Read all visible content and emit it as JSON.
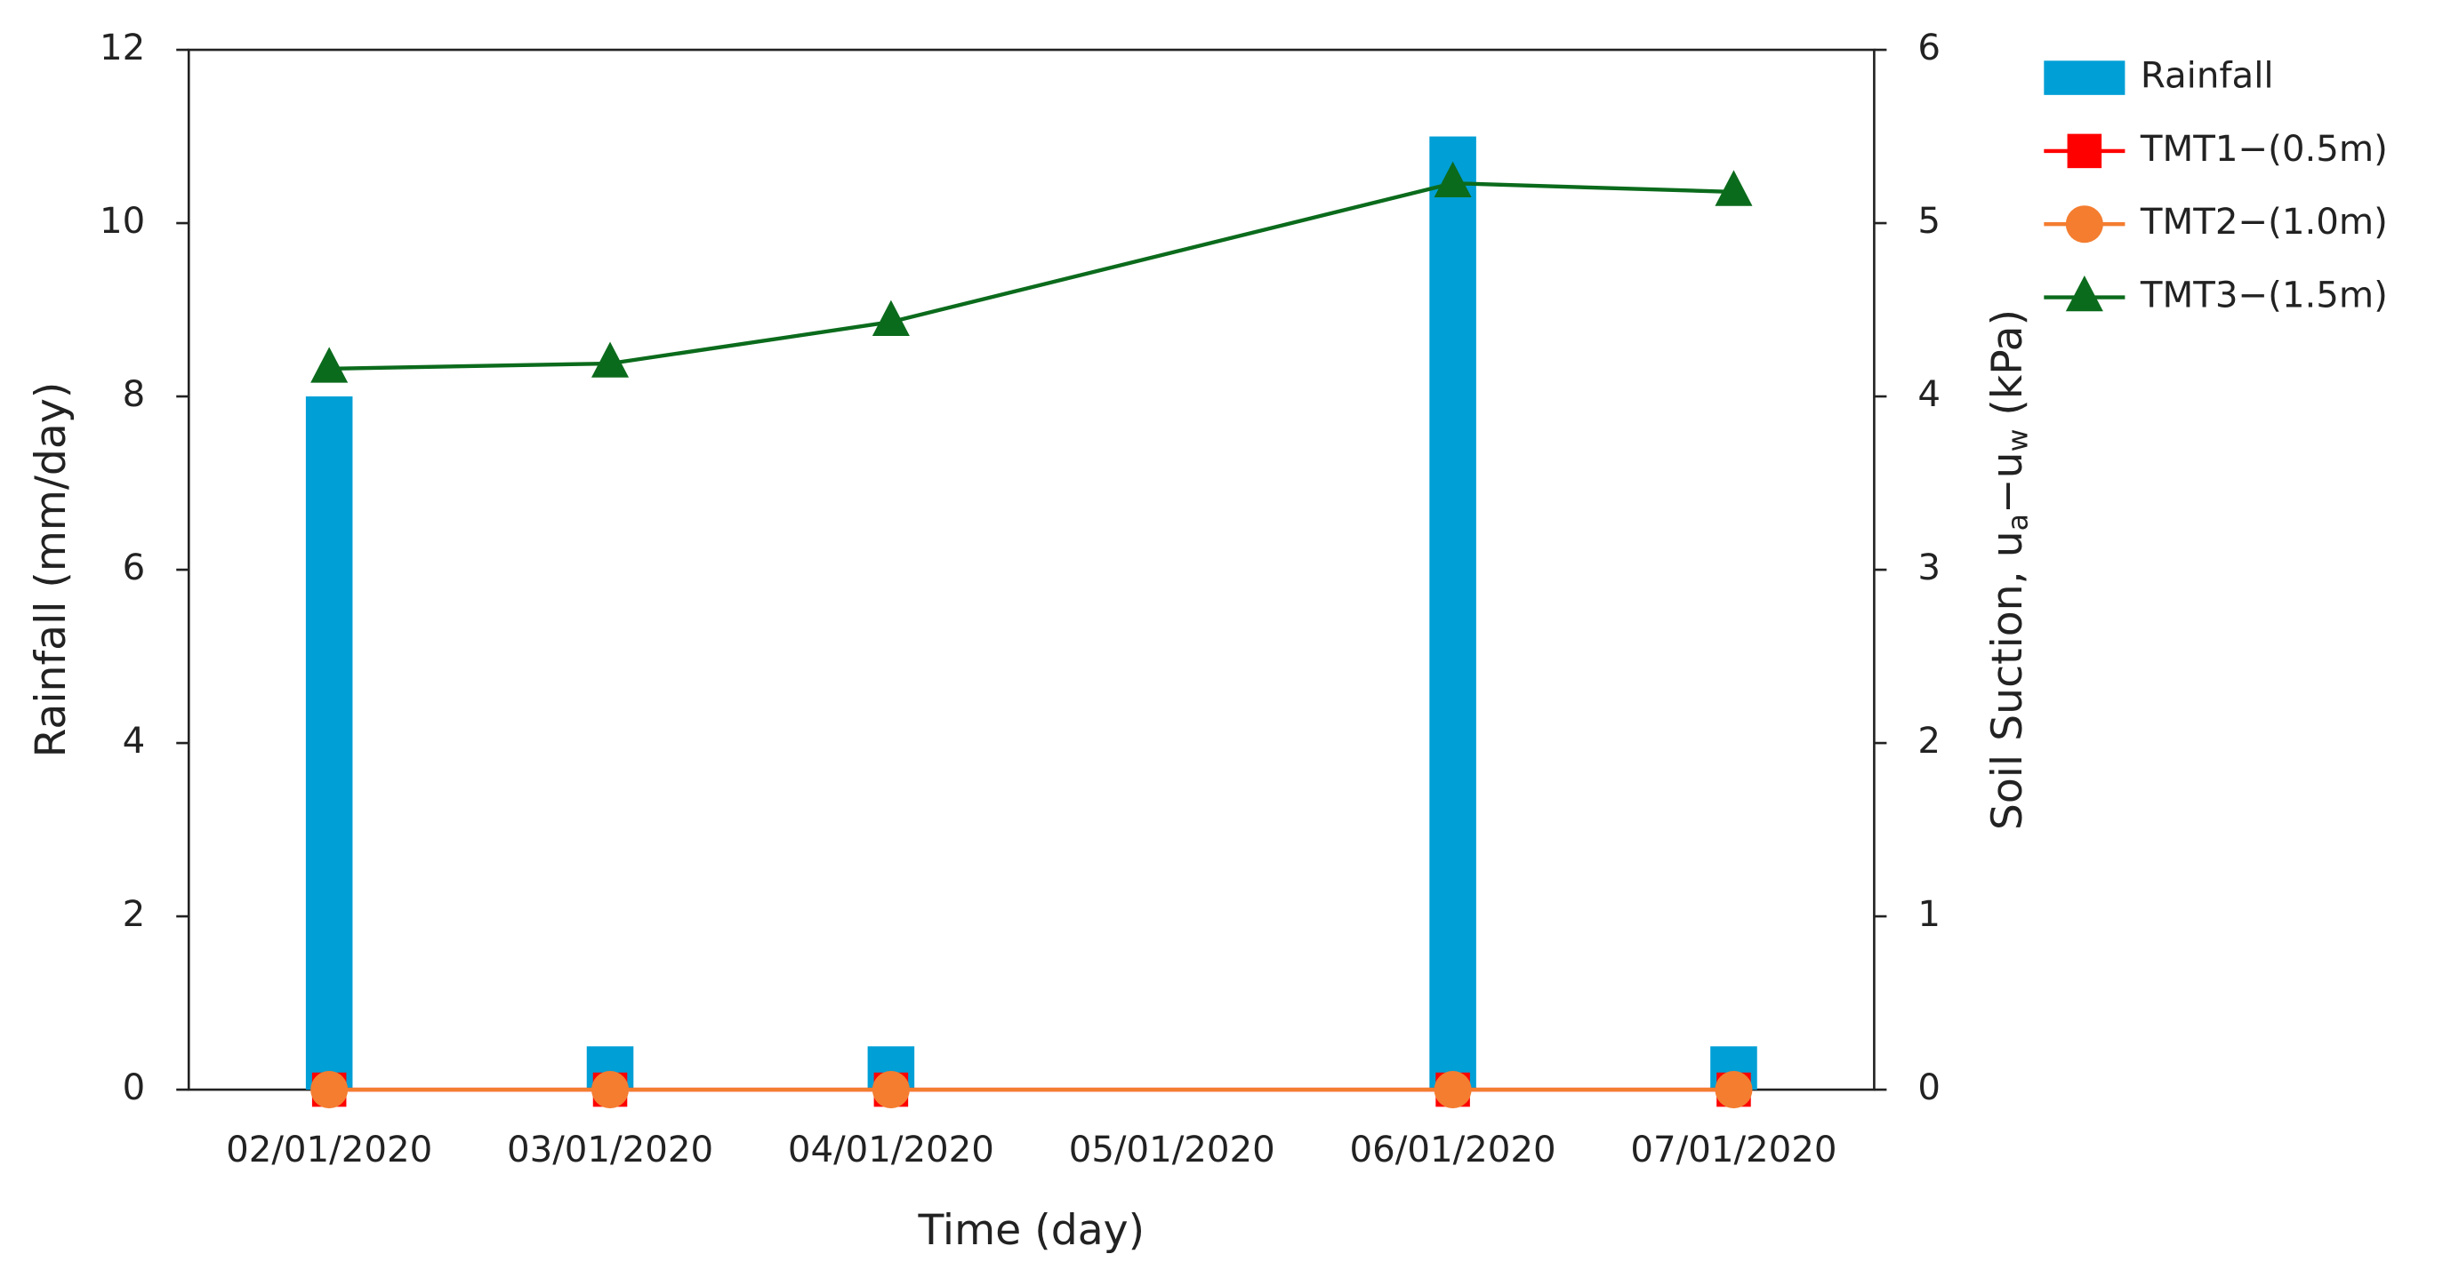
{
  "chart_data": {
    "type": "combo",
    "xlabel": "Time (day)",
    "ylabel": "Rainfall (mm/day)",
    "y2label": [
      "Soil Suction, u",
      "a",
      "−u",
      "w",
      " (kPa)"
    ],
    "categories": [
      "02/01/2020",
      "03/01/2020",
      "04/01/2020",
      "05/01/2020",
      "06/01/2020",
      "07/01/2020"
    ],
    "ylim": [
      0,
      12
    ],
    "yticks": [
      0,
      2,
      4,
      6,
      8,
      10,
      12
    ],
    "y2lim": [
      0,
      6
    ],
    "y2ticks": [
      0,
      1,
      2,
      3,
      4,
      5,
      6
    ],
    "series": [
      {
        "name": "Rainfall",
        "type": "bar",
        "color": "#009fd6",
        "values": [
          8,
          0.5,
          0.5,
          null,
          11,
          0.5
        ]
      },
      {
        "name": "TMT1−(0.5m)",
        "type": "line",
        "marker": "square",
        "axis": "y2",
        "color": "#ff0000",
        "values": [
          0,
          0,
          0,
          null,
          0,
          0
        ]
      },
      {
        "name": "TMT2−(1.0m)",
        "type": "line",
        "marker": "circle",
        "axis": "y2",
        "color": "#f47d30",
        "values": [
          0,
          0,
          0,
          null,
          0,
          0
        ]
      },
      {
        "name": "TMT3−(1.5m)",
        "type": "line",
        "marker": "triangle",
        "axis": "y2",
        "color": "#0b6b1c",
        "values": [
          4.16,
          4.19,
          4.43,
          null,
          5.23,
          5.18
        ]
      }
    ]
  }
}
